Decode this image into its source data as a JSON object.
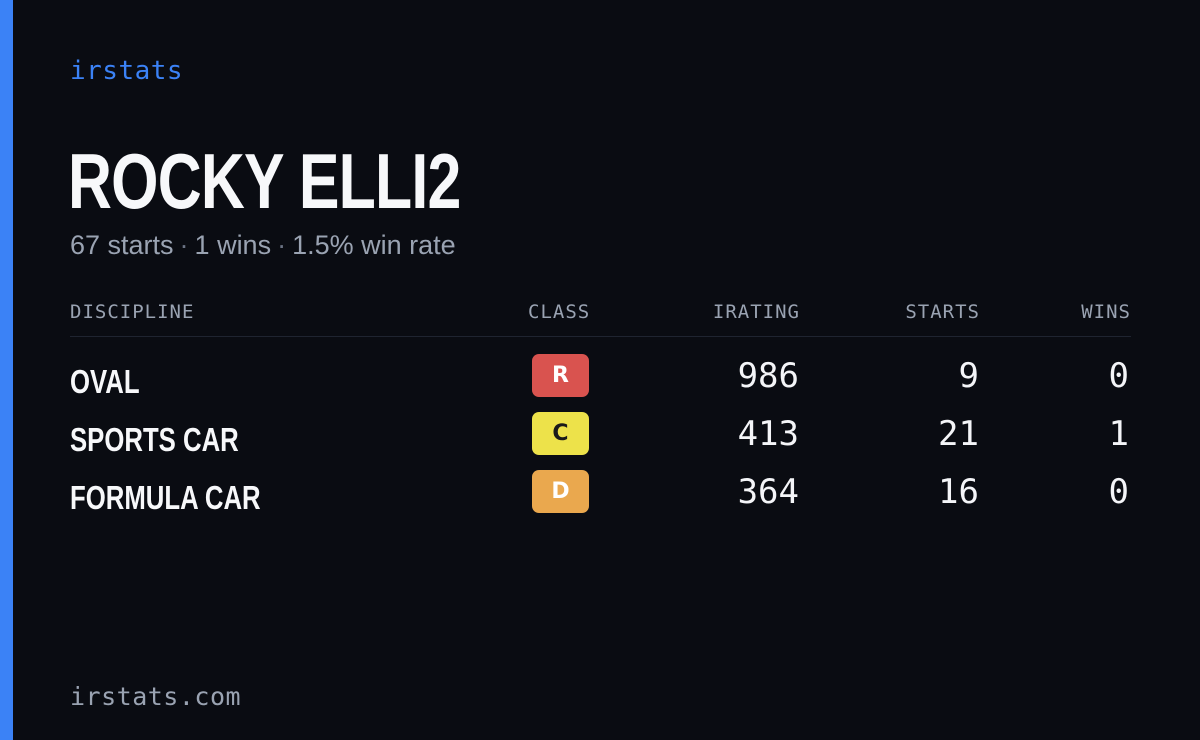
{
  "brand": "irstats",
  "driver": {
    "name": "ROCKY ELLI2"
  },
  "summary": {
    "starts": "67 starts",
    "wins": "1 wins",
    "win_rate": "1.5% win rate",
    "separator": "·"
  },
  "table": {
    "headers": {
      "discipline": "DISCIPLINE",
      "class": "CLASS",
      "irating": "IRATING",
      "starts": "STARTS",
      "wins": "WINS"
    },
    "rows": [
      {
        "discipline": "OVAL",
        "class": "R",
        "class_color": "#d9534f",
        "class_text_color": "#ffffff",
        "irating": "986",
        "starts": "9",
        "wins": "0"
      },
      {
        "discipline": "SPORTS CAR",
        "class": "C",
        "class_color": "#ede24a",
        "class_text_color": "#1a1a1a",
        "irating": "413",
        "starts": "21",
        "wins": "1"
      },
      {
        "discipline": "FORMULA CAR",
        "class": "D",
        "class_color": "#eaa84e",
        "class_text_color": "#ffffff",
        "irating": "364",
        "starts": "16",
        "wins": "0"
      }
    ]
  },
  "footer": {
    "url": "irstats.com"
  },
  "colors": {
    "background": "#0a0c12",
    "accent": "#3b82f6",
    "muted": "#9aa3b2"
  }
}
